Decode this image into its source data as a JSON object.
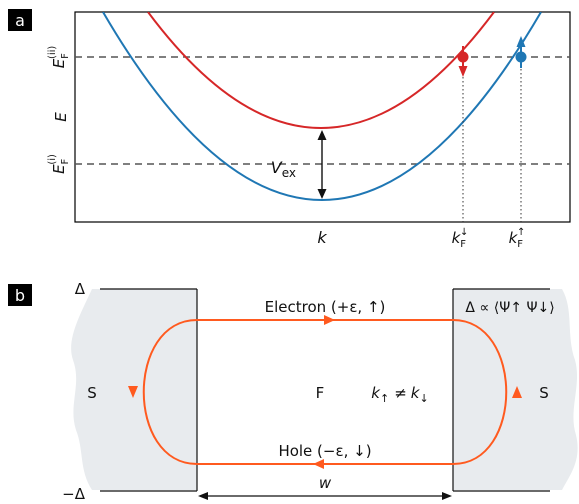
{
  "panels": {
    "a": {
      "label": "a",
      "y_axis": {
        "label": "E",
        "fermi_upper": "E",
        "fermi_upper_sub": "F",
        "fermi_upper_sup": "(ii)",
        "fermi_lower": "E",
        "fermi_lower_sub": "F",
        "fermi_lower_sup": "(i)"
      },
      "x_axis": {
        "label": "k",
        "kf_down_base": "k",
        "kf_down_sub": "F",
        "kf_down_sup": "↓",
        "kf_up_base": "k",
        "kf_up_sub": "F",
        "kf_up_sup": "↑"
      },
      "gap": {
        "base": "V",
        "sub": "ex"
      },
      "colors": {
        "spin_down": "#d62728",
        "spin_up": "#1f77b4",
        "dashed": "#555555"
      }
    },
    "b": {
      "label": "b",
      "delta_top": "Δ",
      "delta_bottom": "−Δ",
      "left_region": "S",
      "right_region": "S",
      "middle_region": "F",
      "k_relation": {
        "k1": "k",
        "k1_sub": "↑",
        "neq": "≠",
        "k2": "k",
        "k2_sub": "↓"
      },
      "electron_label": "Electron (+ε,  ↑)",
      "hole_label": "Hole (−ε,  ↓)",
      "order_param": "Δ ∝ ⟨Ψ↑ Ψ↓⟩",
      "width_label": "w",
      "colors": {
        "loop": "#ff5a1f",
        "superconductor": "#e8ebee"
      }
    }
  }
}
